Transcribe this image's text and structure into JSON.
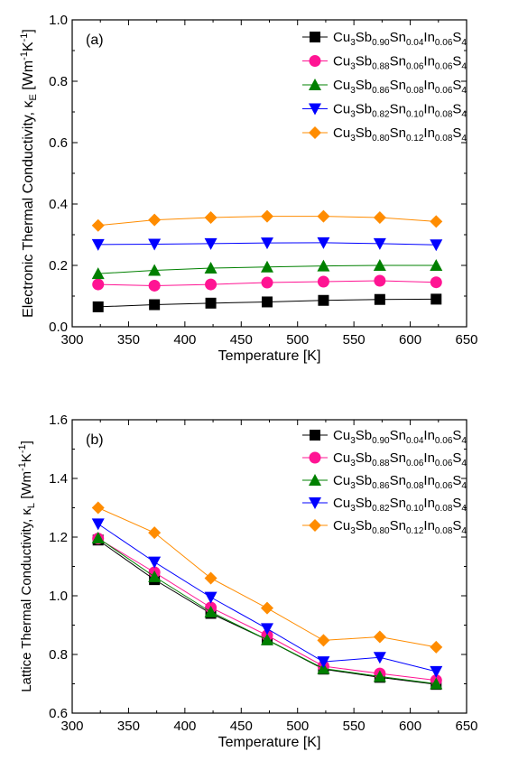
{
  "chart_data": [
    {
      "type": "line",
      "panel_label": "(a)",
      "xlabel": "Temperature [K]",
      "ylabel": "Electronic Thermal Conductivity, κ",
      "ylabel_sub": "E",
      "ylabel_unit": " [Wm",
      "ylabel_unit_sup1": "-1",
      "ylabel_unit_mid": "K",
      "ylabel_unit_sup2": "-1",
      "ylabel_unit_end": "]",
      "xlim": [
        300,
        650
      ],
      "ylim": [
        0.0,
        1.0
      ],
      "xticks": [
        300,
        350,
        400,
        450,
        500,
        550,
        600,
        650
      ],
      "yticks": [
        0.0,
        0.2,
        0.4,
        0.6,
        0.8,
        1.0
      ],
      "ytick_labels": [
        "0.0",
        "0.2",
        "0.4",
        "0.6",
        "0.8",
        "1.0"
      ],
      "legend_position": "top-right",
      "x": [
        323,
        373,
        423,
        473,
        523,
        573,
        623
      ],
      "series": [
        {
          "formula": [
            [
              "Cu",
              ""
            ],
            [
              "3",
              "sub"
            ],
            [
              "Sb",
              ""
            ],
            [
              "0.90",
              "sub"
            ],
            [
              "Sn",
              ""
            ],
            [
              "0.04",
              "sub"
            ],
            [
              "In",
              ""
            ],
            [
              "0.06",
              "sub"
            ],
            [
              "S",
              ""
            ],
            [
              "4",
              "sub"
            ]
          ],
          "color": "#000000",
          "marker": "square",
          "values": [
            0.065,
            0.072,
            0.077,
            0.081,
            0.086,
            0.089,
            0.09
          ]
        },
        {
          "formula": [
            [
              "Cu",
              ""
            ],
            [
              "3",
              "sub"
            ],
            [
              "Sb",
              ""
            ],
            [
              "0.88",
              "sub"
            ],
            [
              "Sn",
              ""
            ],
            [
              "0.06",
              "sub"
            ],
            [
              "In",
              ""
            ],
            [
              "0.06",
              "sub"
            ],
            [
              "S",
              ""
            ],
            [
              "4",
              "sub"
            ]
          ],
          "color": "#ff1493",
          "marker": "circle",
          "values": [
            0.138,
            0.134,
            0.138,
            0.144,
            0.147,
            0.15,
            0.145
          ]
        },
        {
          "formula": [
            [
              "Cu",
              ""
            ],
            [
              "3",
              "sub"
            ],
            [
              "Sb",
              ""
            ],
            [
              "0.86",
              "sub"
            ],
            [
              "Sn",
              ""
            ],
            [
              "0.08",
              "sub"
            ],
            [
              "In",
              ""
            ],
            [
              "0.06",
              "sub"
            ],
            [
              "S",
              ""
            ],
            [
              "4",
              "sub"
            ]
          ],
          "color": "#008000",
          "marker": "triangle-up",
          "values": [
            0.173,
            0.184,
            0.191,
            0.195,
            0.198,
            0.2,
            0.2
          ]
        },
        {
          "formula": [
            [
              "Cu",
              ""
            ],
            [
              "3",
              "sub"
            ],
            [
              "Sb",
              ""
            ],
            [
              "0.82",
              "sub"
            ],
            [
              "Sn",
              ""
            ],
            [
              "0.10",
              "sub"
            ],
            [
              "In",
              ""
            ],
            [
              "0.08",
              "sub"
            ],
            [
              "S",
              ""
            ],
            [
              "4",
              "sub"
            ]
          ],
          "color": "#0000ff",
          "marker": "triangle-down",
          "values": [
            0.268,
            0.269,
            0.271,
            0.273,
            0.274,
            0.271,
            0.267
          ]
        },
        {
          "formula": [
            [
              "Cu",
              ""
            ],
            [
              "3",
              "sub"
            ],
            [
              "Sb",
              ""
            ],
            [
              "0.80",
              "sub"
            ],
            [
              "Sn",
              ""
            ],
            [
              "0.12",
              "sub"
            ],
            [
              "In",
              ""
            ],
            [
              "0.08",
              "sub"
            ],
            [
              "S",
              ""
            ],
            [
              "4",
              "sub"
            ]
          ],
          "color": "#ff8c00",
          "marker": "diamond",
          "values": [
            0.33,
            0.348,
            0.356,
            0.36,
            0.36,
            0.356,
            0.343
          ]
        }
      ]
    },
    {
      "type": "line",
      "panel_label": "(b)",
      "xlabel": "Temperature [K]",
      "ylabel": "Lattice Thermal Conductivity, κ",
      "ylabel_sub": "L",
      "ylabel_unit": " [Wm",
      "ylabel_unit_sup1": "-1",
      "ylabel_unit_mid": "K",
      "ylabel_unit_sup2": "-1",
      "ylabel_unit_end": "]",
      "xlim": [
        300,
        650
      ],
      "ylim": [
        0.6,
        1.6
      ],
      "xticks": [
        300,
        350,
        400,
        450,
        500,
        550,
        600,
        650
      ],
      "yticks": [
        0.6,
        0.8,
        1.0,
        1.2,
        1.4,
        1.6
      ],
      "ytick_labels": [
        "0.6",
        "0.8",
        "1.0",
        "1.2",
        "1.4",
        "1.6"
      ],
      "legend_position": "top-right",
      "x": [
        323,
        373,
        423,
        473,
        523,
        573,
        623
      ],
      "series": [
        {
          "formula": [
            [
              "Cu",
              ""
            ],
            [
              "3",
              "sub"
            ],
            [
              "Sb",
              ""
            ],
            [
              "0.90",
              "sub"
            ],
            [
              "Sn",
              ""
            ],
            [
              "0.04",
              "sub"
            ],
            [
              "In",
              ""
            ],
            [
              "0.06",
              "sub"
            ],
            [
              "S",
              ""
            ],
            [
              "4",
              "sub"
            ]
          ],
          "color": "#000000",
          "marker": "square",
          "values": [
            1.19,
            1.055,
            0.94,
            0.85,
            0.75,
            0.722,
            0.698
          ]
        },
        {
          "formula": [
            [
              "Cu",
              ""
            ],
            [
              "3",
              "sub"
            ],
            [
              "Sb",
              ""
            ],
            [
              "0.88",
              "sub"
            ],
            [
              "Sn",
              ""
            ],
            [
              "0.06",
              "sub"
            ],
            [
              "In",
              ""
            ],
            [
              "0.06",
              "sub"
            ],
            [
              "S",
              ""
            ],
            [
              "4",
              "sub"
            ]
          ],
          "color": "#ff1493",
          "marker": "circle",
          "values": [
            1.195,
            1.08,
            0.96,
            0.865,
            0.76,
            0.735,
            0.712
          ]
        },
        {
          "formula": [
            [
              "Cu",
              ""
            ],
            [
              "3",
              "sub"
            ],
            [
              "Sb",
              ""
            ],
            [
              "0.86",
              "sub"
            ],
            [
              "Sn",
              ""
            ],
            [
              "0.08",
              "sub"
            ],
            [
              "In",
              ""
            ],
            [
              "0.06",
              "sub"
            ],
            [
              "S",
              ""
            ],
            [
              "4",
              "sub"
            ]
          ],
          "color": "#008000",
          "marker": "triangle-up",
          "values": [
            1.197,
            1.065,
            0.945,
            0.85,
            0.752,
            0.725,
            0.7
          ]
        },
        {
          "formula": [
            [
              "Cu",
              ""
            ],
            [
              "3",
              "sub"
            ],
            [
              "Sb",
              ""
            ],
            [
              "0.82",
              "sub"
            ],
            [
              "Sn",
              ""
            ],
            [
              "0.10",
              "sub"
            ],
            [
              "In",
              ""
            ],
            [
              "0.08",
              "sub"
            ],
            [
              "S",
              ""
            ],
            [
              "4",
              "sub"
            ]
          ],
          "color": "#0000ff",
          "marker": "triangle-down",
          "values": [
            1.245,
            1.115,
            0.995,
            0.888,
            0.775,
            0.79,
            0.742
          ]
        },
        {
          "formula": [
            [
              "Cu",
              ""
            ],
            [
              "3",
              "sub"
            ],
            [
              "Sb",
              ""
            ],
            [
              "0.80",
              "sub"
            ],
            [
              "Sn",
              ""
            ],
            [
              "0.12",
              "sub"
            ],
            [
              "In",
              ""
            ],
            [
              "0.08",
              "sub"
            ],
            [
              "S",
              ""
            ],
            [
              "4",
              "sub"
            ]
          ],
          "color": "#ff8c00",
          "marker": "diamond",
          "values": [
            1.3,
            1.215,
            1.06,
            0.958,
            0.848,
            0.86,
            0.825
          ]
        }
      ]
    }
  ]
}
